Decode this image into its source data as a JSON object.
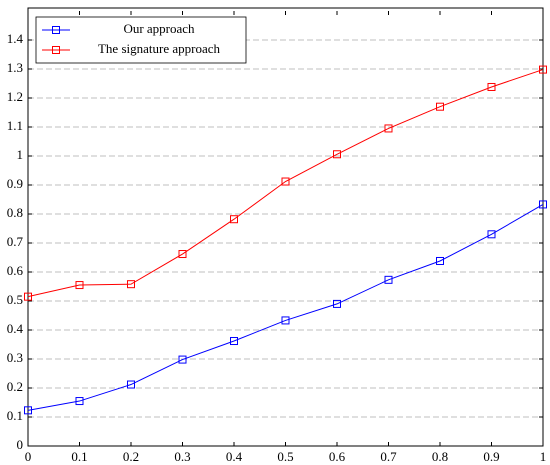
{
  "chart_data": {
    "type": "line",
    "x": [
      0,
      0.1,
      0.2,
      0.3,
      0.4,
      0.5,
      0.6,
      0.7,
      0.8,
      0.9,
      1
    ],
    "series": [
      {
        "name": "Our approach",
        "color": "#0000ff",
        "values": [
          0.123,
          0.155,
          0.212,
          0.298,
          0.362,
          0.433,
          0.49,
          0.573,
          0.638,
          0.73,
          0.833
        ]
      },
      {
        "name": "The signature approach",
        "color": "#ff0000",
        "values": [
          0.515,
          0.555,
          0.558,
          0.662,
          0.782,
          0.912,
          1.006,
          1.095,
          1.17,
          1.238,
          1.298
        ]
      }
    ],
    "xlim": [
      0,
      1
    ],
    "xticks": [
      0,
      0.1,
      0.2,
      0.3,
      0.4,
      0.5,
      0.6,
      0.7,
      0.8,
      0.9,
      1
    ],
    "ylim": [
      0,
      1.5
    ],
    "yticks": [
      0,
      0.1,
      0.2,
      0.3,
      0.4,
      0.5,
      0.6,
      0.7,
      0.8,
      0.9,
      1,
      1.1,
      1.2,
      1.3,
      1.4
    ],
    "grid": true,
    "legend": "upper left"
  }
}
